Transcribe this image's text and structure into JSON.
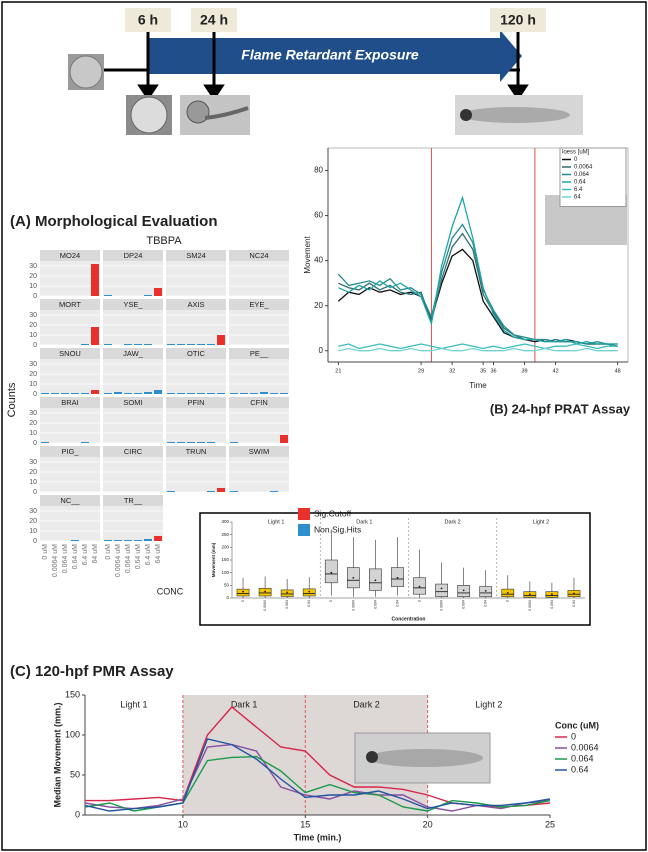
{
  "timeline": {
    "marks": [
      "6 h",
      "24 h",
      "120 h"
    ],
    "bar": "Flame Retardant Exposure"
  },
  "chart_data": [
    {
      "type": "facet_bar",
      "title": "(A) Morphological Evaluation",
      "subtitle": "TBBPA",
      "y_label": "Counts",
      "x_label": "CONC",
      "categories": [
        "0 uM",
        "0.0064 uM",
        "0.064 uM",
        "0.64 uM",
        "6.4 uM",
        "64 uM"
      ],
      "ylim": [
        0,
        35
      ],
      "yticks": [
        0,
        10,
        20,
        30
      ],
      "legend": [
        {
          "name": "Sig.Cutoff",
          "color": "#e8302c"
        },
        {
          "name": "Non.Sig.Hits",
          "color": "#2f8fce"
        }
      ],
      "facets": [
        {
          "name": "MO24",
          "values": [
            0,
            0,
            0,
            0,
            0,
            32
          ],
          "sig": [
            false,
            false,
            false,
            false,
            false,
            true
          ]
        },
        {
          "name": "DP24",
          "values": [
            1,
            0,
            0,
            0,
            1,
            8
          ],
          "sig": [
            false,
            false,
            false,
            false,
            false,
            true
          ]
        },
        {
          "name": "SM24",
          "values": [
            0,
            0,
            0,
            0,
            0,
            0
          ],
          "sig": [
            false,
            false,
            false,
            false,
            false,
            false
          ]
        },
        {
          "name": "NC24",
          "values": [
            0,
            0,
            0,
            0,
            0,
            0
          ],
          "sig": [
            false,
            false,
            false,
            false,
            false,
            false
          ]
        },
        {
          "name": "MORT",
          "values": [
            0,
            0,
            0,
            0,
            1,
            18
          ],
          "sig": [
            false,
            false,
            false,
            false,
            false,
            true
          ]
        },
        {
          "name": "YSE_",
          "values": [
            1,
            0,
            1,
            1,
            1,
            0
          ],
          "sig": [
            false,
            false,
            false,
            false,
            false,
            false
          ]
        },
        {
          "name": "AXIS",
          "values": [
            1,
            1,
            1,
            1,
            1,
            10
          ],
          "sig": [
            false,
            false,
            false,
            false,
            false,
            true
          ]
        },
        {
          "name": "EYE_",
          "values": [
            0,
            0,
            0,
            0,
            0,
            0
          ],
          "sig": [
            false,
            false,
            false,
            false,
            false,
            false
          ]
        },
        {
          "name": "SNOU",
          "values": [
            1,
            1,
            1,
            1,
            1,
            4
          ],
          "sig": [
            false,
            false,
            false,
            false,
            false,
            true
          ]
        },
        {
          "name": "JAW_",
          "values": [
            1,
            2,
            1,
            1,
            2,
            4
          ],
          "sig": [
            false,
            false,
            false,
            false,
            false,
            false
          ]
        },
        {
          "name": "OTIC",
          "values": [
            1,
            1,
            1,
            1,
            1,
            1
          ],
          "sig": [
            false,
            false,
            false,
            false,
            false,
            false
          ]
        },
        {
          "name": "PE__",
          "values": [
            1,
            1,
            1,
            2,
            1,
            1
          ],
          "sig": [
            false,
            false,
            false,
            false,
            false,
            false
          ]
        },
        {
          "name": "BRAI",
          "values": [
            1,
            0,
            0,
            0,
            1,
            0
          ],
          "sig": [
            false,
            false,
            false,
            false,
            false,
            false
          ]
        },
        {
          "name": "SOMI",
          "values": [
            0,
            0,
            0,
            0,
            0,
            0
          ],
          "sig": [
            false,
            false,
            false,
            false,
            false,
            false
          ]
        },
        {
          "name": "PFIN",
          "values": [
            1,
            1,
            1,
            1,
            1,
            0
          ],
          "sig": [
            false,
            false,
            false,
            false,
            false,
            false
          ]
        },
        {
          "name": "CFIN",
          "values": [
            1,
            0,
            0,
            0,
            0,
            8
          ],
          "sig": [
            false,
            false,
            false,
            false,
            false,
            true
          ]
        },
        {
          "name": "PIG_",
          "values": [
            0,
            0,
            0,
            0,
            0,
            0
          ],
          "sig": [
            false,
            false,
            false,
            false,
            false,
            false
          ]
        },
        {
          "name": "CIRC",
          "values": [
            0,
            0,
            0,
            0,
            0,
            0
          ],
          "sig": [
            false,
            false,
            false,
            false,
            false,
            false
          ]
        },
        {
          "name": "TRUN",
          "values": [
            1,
            0,
            0,
            0,
            1,
            4
          ],
          "sig": [
            false,
            false,
            false,
            false,
            false,
            true
          ]
        },
        {
          "name": "SWIM",
          "values": [
            1,
            0,
            0,
            0,
            1,
            0
          ],
          "sig": [
            false,
            false,
            false,
            false,
            false,
            false
          ]
        },
        {
          "name": "NC__",
          "values": [
            0,
            0,
            0,
            1,
            0,
            0
          ],
          "sig": [
            false,
            false,
            false,
            false,
            false,
            false
          ]
        },
        {
          "name": "TR__",
          "values": [
            1,
            1,
            1,
            1,
            2,
            5
          ],
          "sig": [
            false,
            false,
            false,
            false,
            false,
            true
          ]
        }
      ]
    },
    {
      "type": "line",
      "title": "(B) 24-hpf PRAT Assay",
      "x_label": "Time",
      "y_label": "Movement",
      "legend_title": "loess [uM]",
      "x": [
        21,
        22,
        23,
        24,
        25,
        26,
        27,
        28,
        29,
        30,
        31,
        32,
        33,
        34,
        35,
        36,
        37,
        38,
        39,
        40,
        41,
        42,
        43,
        44,
        45,
        46,
        47,
        48
      ],
      "xlim": [
        20,
        49
      ],
      "xticks": [
        21,
        29,
        32,
        35,
        36,
        39,
        42,
        48
      ],
      "ylim": [
        -5,
        90
      ],
      "yticks": [
        0,
        20,
        40,
        60,
        80
      ],
      "vlines": [
        30,
        40
      ],
      "vline_color": "#d9534f",
      "series": [
        {
          "name": "0",
          "color": "#111111",
          "values": [
            22,
            26,
            25,
            28,
            26,
            27,
            25,
            26,
            24,
            14,
            30,
            42,
            45,
            40,
            22,
            15,
            8,
            6,
            5,
            4,
            5,
            4,
            5,
            4,
            3,
            3,
            3,
            2
          ]
        },
        {
          "name": "0.0064",
          "color": "#2f6f6f",
          "values": [
            30,
            28,
            27,
            30,
            27,
            29,
            26,
            25,
            26,
            13,
            32,
            46,
            52,
            45,
            25,
            17,
            10,
            7,
            5,
            5,
            4,
            5,
            4,
            4,
            3,
            3,
            3,
            3
          ]
        },
        {
          "name": "0.064",
          "color": "#258c8c",
          "values": [
            34,
            29,
            30,
            31,
            29,
            32,
            27,
            28,
            25,
            15,
            35,
            50,
            56,
            48,
            27,
            18,
            11,
            7,
            6,
            5,
            5,
            4,
            4,
            4,
            3,
            4,
            3,
            2
          ]
        },
        {
          "name": "0.64",
          "color": "#1ea5a5",
          "values": [
            28,
            26,
            29,
            27,
            31,
            28,
            30,
            27,
            24,
            12,
            38,
            55,
            68,
            50,
            28,
            16,
            9,
            6,
            5,
            5,
            4,
            4,
            5,
            3,
            4,
            3,
            3,
            3
          ]
        },
        {
          "name": "6.4",
          "color": "#3cbcbc",
          "values": [
            2,
            3,
            1,
            2,
            3,
            2,
            1,
            2,
            3,
            2,
            1,
            2,
            3,
            2,
            1,
            2,
            1,
            2,
            3,
            2,
            1,
            2,
            2,
            3,
            2,
            1,
            2,
            2
          ]
        },
        {
          "name": "64",
          "color": "#72d2d2",
          "values": [
            0,
            1,
            0,
            0,
            1,
            0,
            0,
            1,
            0,
            0,
            1,
            0,
            0,
            1,
            0,
            0,
            0,
            1,
            0,
            0,
            1,
            0,
            0,
            0,
            1,
            0,
            0,
            0
          ]
        }
      ]
    },
    {
      "type": "box",
      "x_label": "Concentration",
      "y_label": "Movement (mm)",
      "ylim": [
        0,
        300
      ],
      "yticks": [
        0,
        50,
        100,
        150,
        200,
        250,
        300
      ],
      "groups": [
        {
          "name": "Light 1",
          "color": "#f5c400",
          "boxes": [
            {
              "name": "0",
              "min": 0,
              "q1": 8,
              "median": 18,
              "q3": 35,
              "max": 80,
              "mean": 25
            },
            {
              "name": "0.0064",
              "min": 0,
              "q1": 8,
              "median": 20,
              "q3": 38,
              "max": 85,
              "mean": 26
            },
            {
              "name": "0.064",
              "min": 0,
              "q1": 6,
              "median": 16,
              "q3": 32,
              "max": 75,
              "mean": 22
            },
            {
              "name": "0.64",
              "min": 0,
              "q1": 8,
              "median": 18,
              "q3": 36,
              "max": 82,
              "mean": 25
            }
          ]
        },
        {
          "name": "Dark 1",
          "color": "#d3d3d3",
          "boxes": [
            {
              "name": "0",
              "min": 10,
              "q1": 60,
              "median": 95,
              "q3": 150,
              "max": 270,
              "mean": 100
            },
            {
              "name": "0.0064",
              "min": 5,
              "q1": 40,
              "median": 70,
              "q3": 120,
              "max": 240,
              "mean": 80
            },
            {
              "name": "0.064",
              "min": 5,
              "q1": 30,
              "median": 60,
              "q3": 115,
              "max": 230,
              "mean": 70
            },
            {
              "name": "0.64",
              "min": 10,
              "q1": 45,
              "median": 75,
              "q3": 120,
              "max": 240,
              "mean": 80
            }
          ]
        },
        {
          "name": "Dark 2",
          "color": "#d3d3d3",
          "boxes": [
            {
              "name": "0",
              "min": 0,
              "q1": 15,
              "median": 40,
              "q3": 80,
              "max": 190,
              "mean": 45
            },
            {
              "name": "0.0064",
              "min": 0,
              "q1": 5,
              "median": 25,
              "q3": 55,
              "max": 140,
              "mean": 38
            },
            {
              "name": "0.064",
              "min": 0,
              "q1": 5,
              "median": 20,
              "q3": 50,
              "max": 120,
              "mean": 30
            },
            {
              "name": "0.64",
              "min": 0,
              "q1": 5,
              "median": 20,
              "q3": 45,
              "max": 110,
              "mean": 28
            }
          ]
        },
        {
          "name": "Light 2",
          "color": "#f5c400",
          "boxes": [
            {
              "name": "0",
              "min": 0,
              "q1": 5,
              "median": 15,
              "q3": 35,
              "max": 90,
              "mean": 20
            },
            {
              "name": "0.0064",
              "min": 0,
              "q1": 3,
              "median": 10,
              "q3": 25,
              "max": 65,
              "mean": 15
            },
            {
              "name": "0.064",
              "min": 0,
              "q1": 3,
              "median": 10,
              "q3": 25,
              "max": 60,
              "mean": 15
            },
            {
              "name": "0.64",
              "min": 0,
              "q1": 5,
              "median": 15,
              "q3": 30,
              "max": 80,
              "mean": 18
            }
          ]
        }
      ]
    },
    {
      "type": "line",
      "title": "(C) 120-hpf PMR Assay",
      "x_label": "Time (min.)",
      "y_label": "Median Movement (mm.)",
      "legend_title": "Conc (uM)",
      "x": [
        6,
        7,
        8,
        9,
        10,
        11,
        12,
        13,
        14,
        15,
        16,
        17,
        18,
        19,
        20,
        21,
        22,
        23,
        24,
        25
      ],
      "xlim": [
        6,
        25
      ],
      "xticks": [
        10,
        15,
        20,
        25
      ],
      "ylim": [
        0,
        150
      ],
      "yticks": [
        0,
        50,
        100,
        150
      ],
      "phases": [
        {
          "name": "Light 1",
          "range": [
            6,
            10
          ],
          "shade": false
        },
        {
          "name": "Dark 1",
          "range": [
            10,
            15
          ],
          "shade": true
        },
        {
          "name": "Dark 2",
          "range": [
            15,
            20
          ],
          "shade": true
        },
        {
          "name": "Light 2",
          "range": [
            20,
            25
          ],
          "shade": false
        }
      ],
      "series": [
        {
          "name": "0",
          "color": "#d6264a",
          "values": [
            18,
            18,
            20,
            22,
            18,
            100,
            135,
            110,
            85,
            80,
            50,
            35,
            35,
            32,
            25,
            15,
            12,
            10,
            12,
            15
          ]
        },
        {
          "name": "0.0064",
          "color": "#8a4fa0",
          "values": [
            15,
            10,
            8,
            12,
            20,
            85,
            88,
            80,
            35,
            25,
            20,
            30,
            25,
            25,
            10,
            5,
            12,
            8,
            15,
            18
          ]
        },
        {
          "name": "0.064",
          "color": "#1a9a4a",
          "values": [
            10,
            15,
            5,
            10,
            15,
            68,
            72,
            73,
            55,
            28,
            38,
            28,
            25,
            10,
            5,
            18,
            15,
            10,
            12,
            18
          ]
        },
        {
          "name": "0.64",
          "color": "#2255a0",
          "values": [
            12,
            5,
            8,
            10,
            15,
            95,
            88,
            70,
            45,
            22,
            25,
            25,
            30,
            20,
            8,
            15,
            12,
            12,
            15,
            20
          ]
        }
      ]
    }
  ]
}
